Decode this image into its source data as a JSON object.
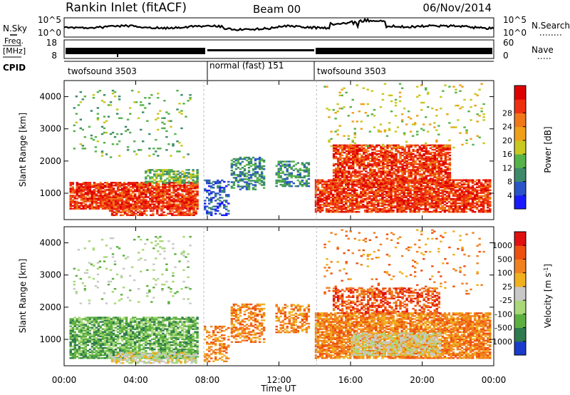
{
  "header": {
    "station": "Rankin Inlet (fitACF)",
    "beam": "Beam 00",
    "date": "06/Nov/2014"
  },
  "noise_panel": {
    "left_label": "N.Sky",
    "right_label": "N.Search",
    "left_ticks": [
      "10^5",
      "10^0"
    ],
    "right_ticks": [
      "10^5",
      "10^0"
    ]
  },
  "freq_panel": {
    "left_label_line1": "Freq.",
    "left_label_line2": "[MHz]",
    "right_label": "Nave",
    "left_ticks": [
      "18",
      "8"
    ],
    "right_ticks": [
      "60",
      "0"
    ]
  },
  "cpid": {
    "label": "CPID",
    "segments": [
      {
        "name": "twofsound 3503",
        "start_h": 0,
        "end_h": 7.8
      },
      {
        "name": "normal (fast) 151",
        "start_h": 7.8,
        "end_h": 14.1
      },
      {
        "name": "twofsound 3503",
        "start_h": 14.1,
        "end_h": 24
      }
    ]
  },
  "chart_data": [
    {
      "type": "heatmap",
      "title": "",
      "xlabel": "Time UT",
      "ylabel": "Slant Range [km]",
      "x_ticks": [
        "00:00",
        "04:00",
        "08:00",
        "12:00",
        "16:00",
        "20:00",
        "00:00"
      ],
      "y_ticks": [
        1000,
        2000,
        3000,
        4000
      ],
      "xlim_hours": [
        0,
        24
      ],
      "ylim": [
        180,
        4500
      ],
      "colorbar": {
        "label": "Power [dB]",
        "ticks": [
          "4",
          "8",
          "12",
          "16",
          "20",
          "24",
          "28"
        ],
        "colors": [
          "#1a1aff",
          "#2a55c8",
          "#3d8a6a",
          "#56b34a",
          "#c8c820",
          "#f0a018",
          "#f07818",
          "#ee3010",
          "#dd0000"
        ]
      },
      "regions": [
        {
          "t0": 0.3,
          "t1": 7.4,
          "r0": 500,
          "r1": 1350,
          "level": 7,
          "density": 0.85
        },
        {
          "t0": 2.5,
          "t1": 7.4,
          "r0": 300,
          "r1": 600,
          "level": 7,
          "density": 0.6
        },
        {
          "t0": 4.5,
          "t1": 7.4,
          "r0": 1300,
          "r1": 1750,
          "level": 3,
          "density": 0.6
        },
        {
          "t0": 7.8,
          "t1": 9.2,
          "r0": 300,
          "r1": 1400,
          "level": 1,
          "density": 0.4
        },
        {
          "t0": 9.3,
          "t1": 11.2,
          "r0": 1100,
          "r1": 2100,
          "level": 2,
          "density": 0.5
        },
        {
          "t0": 11.8,
          "t1": 13.6,
          "r0": 1200,
          "r1": 2000,
          "level": 2,
          "density": 0.5
        },
        {
          "t0": 14.0,
          "t1": 23.8,
          "r0": 400,
          "r1": 1400,
          "level": 7,
          "density": 0.8
        },
        {
          "t0": 15.0,
          "t1": 21.5,
          "r0": 1300,
          "r1": 2500,
          "level": 7,
          "density": 0.75
        },
        {
          "t0": 0.5,
          "t1": 7.0,
          "r0": 2100,
          "r1": 4200,
          "level": 3,
          "density": 0.06
        },
        {
          "t0": 14.5,
          "t1": 23.5,
          "r0": 2400,
          "r1": 4400,
          "level": 4,
          "density": 0.06
        }
      ]
    },
    {
      "type": "heatmap",
      "title": "",
      "xlabel": "Time UT",
      "ylabel": "Slant Range [km]",
      "x_ticks": [
        "00:00",
        "04:00",
        "08:00",
        "12:00",
        "16:00",
        "20:00",
        "00:00"
      ],
      "y_ticks": [
        1000,
        2000,
        3000,
        4000
      ],
      "xlim_hours": [
        0,
        24
      ],
      "ylim": [
        180,
        4500
      ],
      "colorbar": {
        "label": "Velocity [m s^-1]",
        "ticks": [
          "1000",
          "500",
          "100",
          "25",
          "-25",
          "-100",
          "-500",
          "-1000"
        ],
        "colors": [
          "#1a3ccc",
          "#2f7a4e",
          "#5cb040",
          "#a8d878",
          "#c8c8c8",
          "#f0b020",
          "#f08020",
          "#ee5010",
          "#e01010"
        ]
      },
      "regions": [
        {
          "t0": 0.3,
          "t1": 7.4,
          "r0": 400,
          "r1": 1700,
          "level": 2,
          "density": 0.75
        },
        {
          "t0": 2.5,
          "t1": 7.4,
          "r0": 250,
          "r1": 600,
          "level": 4,
          "density": 0.6
        },
        {
          "t0": 7.8,
          "t1": 9.2,
          "r0": 300,
          "r1": 1400,
          "level": 6,
          "density": 0.4
        },
        {
          "t0": 9.3,
          "t1": 11.2,
          "r0": 900,
          "r1": 2100,
          "level": 6,
          "density": 0.5
        },
        {
          "t0": 11.8,
          "t1": 13.6,
          "r0": 1200,
          "r1": 2100,
          "level": 6,
          "density": 0.5
        },
        {
          "t0": 14.0,
          "t1": 23.8,
          "r0": 400,
          "r1": 1800,
          "level": 6,
          "density": 0.8
        },
        {
          "t0": 16.0,
          "t1": 21.0,
          "r0": 500,
          "r1": 1200,
          "level": 4,
          "density": 0.7
        },
        {
          "t0": 15.0,
          "t1": 21.0,
          "r0": 1800,
          "r1": 2600,
          "level": 7,
          "density": 0.55
        },
        {
          "t0": 0.5,
          "t1": 7.0,
          "r0": 2100,
          "r1": 4200,
          "level": 3,
          "density": 0.06
        },
        {
          "t0": 14.5,
          "t1": 23.5,
          "r0": 2400,
          "r1": 4400,
          "level": 6,
          "density": 0.06
        }
      ]
    }
  ]
}
